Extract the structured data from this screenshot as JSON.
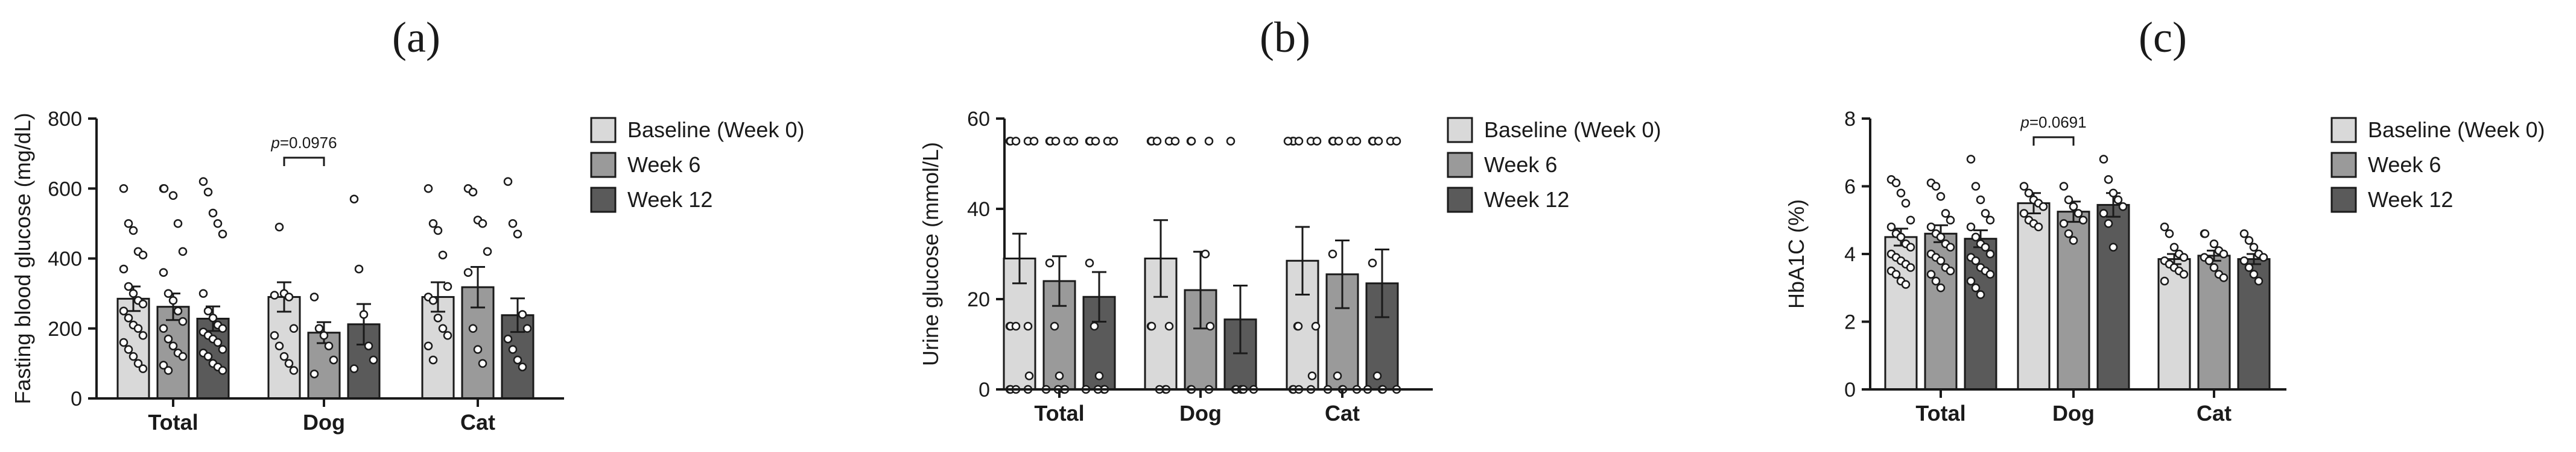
{
  "figure": {
    "legend": [
      "Baseline (Week 0)",
      "Week 6",
      "Week 12"
    ],
    "colors": {
      "baseline": "#d9d9d9",
      "week6": "#9a9a9a",
      "week12": "#5a5a5a",
      "axis": "#1a1a1a"
    }
  },
  "chart_data": [
    {
      "type": "bar",
      "panel": "(a)",
      "ylabel": "Fasting blood glucose (mg/dL)",
      "xlabel": "",
      "ylim": [
        0,
        800
      ],
      "yticks": [
        "0",
        "200",
        "400",
        "600",
        "800"
      ],
      "categories": [
        "Total",
        "Dog",
        "Cat"
      ],
      "series": [
        {
          "name": "Baseline (Week 0)",
          "values": [
            285,
            290,
            290
          ],
          "errors": [
            35,
            42,
            42
          ]
        },
        {
          "name": "Week 6",
          "values": [
            262,
            188,
            318
          ],
          "errors": [
            38,
            30,
            58
          ]
        },
        {
          "name": "Week 12",
          "values": [
            228,
            212,
            238
          ],
          "errors": [
            35,
            58,
            48
          ]
        }
      ],
      "points": [
        [
          [
            600,
            500,
            480,
            420,
            410,
            370,
            320,
            300,
            280,
            270,
            250,
            230,
            210,
            200,
            180,
            160,
            140,
            120,
            100,
            85
          ],
          [
            295,
            490,
            300,
            290,
            200,
            180,
            150,
            120,
            100,
            80
          ],
          [
            600,
            500,
            480,
            410,
            320,
            290,
            280,
            230,
            200,
            180,
            150,
            110
          ]
        ],
        [
          [
            600,
            600,
            580,
            500,
            420,
            360,
            300,
            280,
            250,
            220,
            200,
            170,
            150,
            130,
            120,
            95,
            80
          ],
          [
            290,
            200,
            180,
            150,
            110,
            70
          ],
          [
            600,
            590,
            510,
            500,
            420,
            360,
            200,
            140,
            100
          ]
        ],
        [
          [
            620,
            590,
            530,
            500,
            470,
            300,
            250,
            230,
            210,
            200,
            190,
            180,
            170,
            160,
            140,
            130,
            120,
            100,
            90,
            80
          ],
          [
            570,
            370,
            240,
            150,
            110,
            85
          ],
          [
            620,
            500,
            470,
            240,
            200,
            170,
            140,
            110,
            90
          ]
        ]
      ],
      "annotation": {
        "text": "p=0.0976",
        "category": "Dog",
        "between": [
          "Baseline (Week 0)",
          "Week 6"
        ]
      }
    },
    {
      "type": "bar",
      "panel": "(b)",
      "ylabel": "Urine glucose (mmol/L)",
      "xlabel": "",
      "ylim": [
        0,
        60
      ],
      "yticks": [
        "0",
        "20",
        "40",
        "60"
      ],
      "categories": [
        "Total",
        "Dog",
        "Cat"
      ],
      "series": [
        {
          "name": "Baseline (Week 0)",
          "values": [
            29,
            29,
            28.5
          ],
          "errors": [
            5.5,
            8.5,
            7.5
          ]
        },
        {
          "name": "Week 6",
          "values": [
            24,
            22,
            25.5
          ],
          "errors": [
            5.5,
            8.5,
            7.5
          ]
        },
        {
          "name": "Week 12",
          "values": [
            20.5,
            15.5,
            23.5
          ],
          "errors": [
            5.5,
            7.5,
            7.5
          ]
        }
      ],
      "points": [
        [
          [
            55,
            55,
            55,
            55,
            55,
            14,
            14,
            14,
            14,
            3,
            0,
            0,
            0,
            0
          ],
          [
            55,
            55,
            55,
            55,
            55,
            14,
            14,
            14,
            0,
            0,
            0
          ],
          [
            55,
            55,
            55,
            55,
            55,
            55,
            14,
            14,
            14,
            3,
            0,
            0,
            0,
            0
          ]
        ],
        [
          [
            55,
            55,
            55,
            55,
            55,
            28,
            14,
            3,
            0,
            0,
            0,
            0
          ],
          [
            55,
            55,
            55,
            30,
            14,
            0,
            0,
            0
          ],
          [
            55,
            55,
            55,
            55,
            55,
            30,
            3,
            0,
            0,
            0,
            0
          ]
        ],
        [
          [
            55,
            55,
            55,
            55,
            55,
            28,
            14,
            3,
            0,
            0,
            0,
            0
          ],
          [
            55,
            0,
            0,
            0,
            0,
            0
          ],
          [
            55,
            55,
            55,
            55,
            55,
            28,
            3,
            0,
            0,
            0,
            0
          ]
        ]
      ]
    },
    {
      "type": "bar",
      "panel": "(c)",
      "ylabel": "HbA1C (%)",
      "xlabel": "",
      "ylim": [
        0,
        8
      ],
      "yticks": [
        "0",
        "2",
        "4",
        "6",
        "8"
      ],
      "categories": [
        "Total",
        "Dog",
        "Cat"
      ],
      "series": [
        {
          "name": "Baseline (Week 0)",
          "values": [
            4.5,
            5.5,
            3.85
          ],
          "errors": [
            0.25,
            0.3,
            0.15
          ]
        },
        {
          "name": "Week 6",
          "values": [
            4.6,
            5.25,
            3.95
          ],
          "errors": [
            0.25,
            0.3,
            0.15
          ]
        },
        {
          "name": "Week 12",
          "values": [
            4.45,
            5.45,
            3.85
          ],
          "errors": [
            0.25,
            0.35,
            0.15
          ]
        }
      ],
      "points": [
        [
          [
            6.2,
            6.1,
            5.8,
            5.5,
            5.0,
            4.8,
            4.6,
            4.5,
            4.3,
            4.2,
            4.0,
            3.9,
            3.8,
            3.7,
            3.6,
            3.5,
            3.4,
            3.2,
            3.1
          ],
          [
            6.0,
            5.8,
            5.6,
            5.5,
            5.4,
            5.2,
            5.0,
            4.9,
            4.8
          ],
          [
            4.8,
            4.6,
            4.2,
            4.0,
            3.9,
            3.8,
            3.7,
            3.6,
            3.5,
            3.4,
            3.2
          ]
        ],
        [
          [
            6.1,
            6.0,
            5.7,
            5.2,
            5.0,
            4.8,
            4.6,
            4.5,
            4.3,
            4.2,
            4.0,
            3.9,
            3.8,
            3.6,
            3.5,
            3.4,
            3.2,
            3.0
          ],
          [
            6.0,
            5.6,
            5.4,
            5.2,
            5.0,
            4.9,
            4.6,
            4.4
          ],
          [
            4.6,
            4.6,
            4.3,
            4.1,
            4.0,
            3.9,
            3.8,
            3.6,
            3.4,
            3.3
          ]
        ],
        [
          [
            6.8,
            6.0,
            5.6,
            5.2,
            5.0,
            4.8,
            4.5,
            4.3,
            4.2,
            4.0,
            3.9,
            3.8,
            3.6,
            3.5,
            3.4,
            3.2,
            3.0,
            2.8
          ],
          [
            6.8,
            6.2,
            5.8,
            5.6,
            5.4,
            5.2,
            4.9,
            4.2
          ],
          [
            4.6,
            4.4,
            4.2,
            4.0,
            3.9,
            3.8,
            3.6,
            3.4,
            3.2
          ]
        ]
      ],
      "annotation": {
        "text": "p=0.0691",
        "category": "Dog",
        "between": [
          "Baseline (Week 0)",
          "Week 6"
        ]
      }
    }
  ]
}
